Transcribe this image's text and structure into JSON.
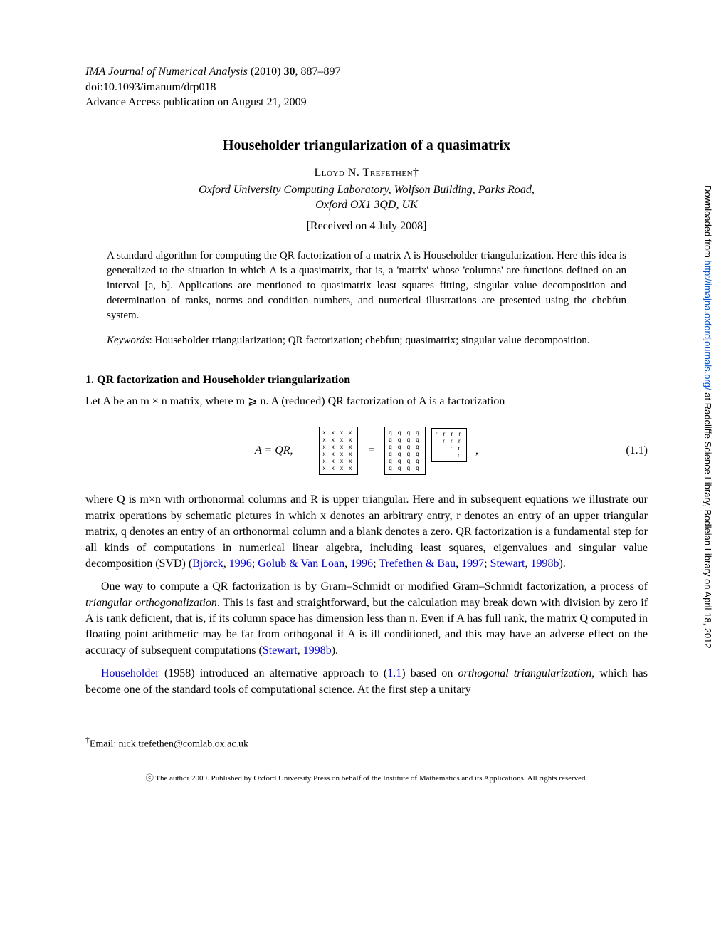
{
  "journal": {
    "line1_italic": "IMA Journal of Numerical Analysis",
    "line1_rest": " (2010) ",
    "volume": "30",
    "pages": ", 887–897",
    "doi": "doi:10.1093/imanum/drp018",
    "advance": "Advance Access publication on August 21, 2009"
  },
  "title": "Householder triangularization of a quasimatrix",
  "author": {
    "name": "Lloyd N. Trefethen",
    "dagger": "†"
  },
  "affiliation": {
    "line1": "Oxford University Computing Laboratory, Wolfson Building, Parks Road,",
    "line2": "Oxford OX1 3QD, UK"
  },
  "received": "[Received on 4 July 2008]",
  "abstract": "A standard algorithm for computing the QR factorization of a matrix A is Householder triangularization. Here this idea is generalized to the situation in which A is a quasimatrix, that is, a 'matrix' whose 'columns' are functions defined on an interval [a, b]. Applications are mentioned to quasimatrix least squares fitting, singular value decomposition and determination of ranks, norms and condition numbers, and numerical illustrations are presented using the chebfun system.",
  "keywords": {
    "label": "Keywords",
    "text": ": Householder triangularization; QR factorization; chebfun; quasimatrix; singular value decomposition."
  },
  "section1": {
    "heading": "1. QR factorization and Householder triangularization",
    "intro": "Let A be an m × n matrix, where m ⩾ n. A (reduced) QR factorization of A is a factorization"
  },
  "equation": {
    "label": "A = QR,",
    "number": "(1.1)",
    "matrixA": {
      "rows": [
        "x x x x",
        "x x x x",
        "x x x x",
        "x x x x",
        "x x x x",
        "x x x x"
      ]
    },
    "matrixQ": {
      "rows": [
        "q q q q",
        "q q q q",
        "q q q q",
        "q q q q",
        "q q q q",
        "q q q q"
      ]
    },
    "matrixR": {
      "rows": [
        "r r r r",
        "  r r r",
        "    r r",
        "      r"
      ]
    }
  },
  "para1": {
    "text1": "where Q is m×n with orthonormal columns and R is upper triangular. Here and in subsequent equations we illustrate our matrix operations by schematic pictures in which x denotes an arbitrary entry, r denotes an entry of an upper triangular matrix, q denotes an entry of an orthonormal column and a blank denotes a zero. QR factorization is a fundamental step for all kinds of computations in numerical linear algebra, including least squares, eigenvalues and singular value decomposition (SVD) (",
    "ref1": "Björck",
    "ref1y": "1996",
    "ref2": "Golub & Van Loan",
    "ref2y": "1996",
    "ref3": "Trefethen & Bau",
    "ref3y": "1997",
    "ref4": "Stewart",
    "ref4y": "1998b",
    "text_end": ")."
  },
  "para2": {
    "text1": "One way to compute a QR factorization is by Gram–Schmidt or modified Gram–Schmidt factorization, a process of ",
    "emph1": "triangular orthogonalization",
    "text2": ". This is fast and straightforward, but the calculation may break down with division by zero if A is rank deficient, that is, if its column space has dimension less than n. Even if A has full rank, the matrix Q computed in floating point arithmetic may be far from orthogonal if A is ill conditioned, and this may have an adverse effect on the accuracy of subsequent computations (",
    "ref1": "Stewart",
    "ref1y": "1998b",
    "text3": ")."
  },
  "para3": {
    "ref1": "Householder",
    "text1": " (1958) introduced an alternative approach to (",
    "eqref": "1.1",
    "text2": ") based on ",
    "emph1": "orthogonal triangularization",
    "text3": ", which has become one of the standard tools of computational science. At the first step a unitary"
  },
  "footnote": {
    "dagger": "†",
    "text": "Email: nick.trefethen@comlab.ox.ac.uk"
  },
  "copyright": "ⓒ The author 2009. Published by Oxford University Press on behalf of the Institute of Mathematics and its Applications. All rights reserved.",
  "sidebar": {
    "pre": "Downloaded from ",
    "url": "http://imajna.oxfordjournals.org/",
    "post": " at Radcliffe Science Library, Bodleian Library on April 18, 2012"
  }
}
